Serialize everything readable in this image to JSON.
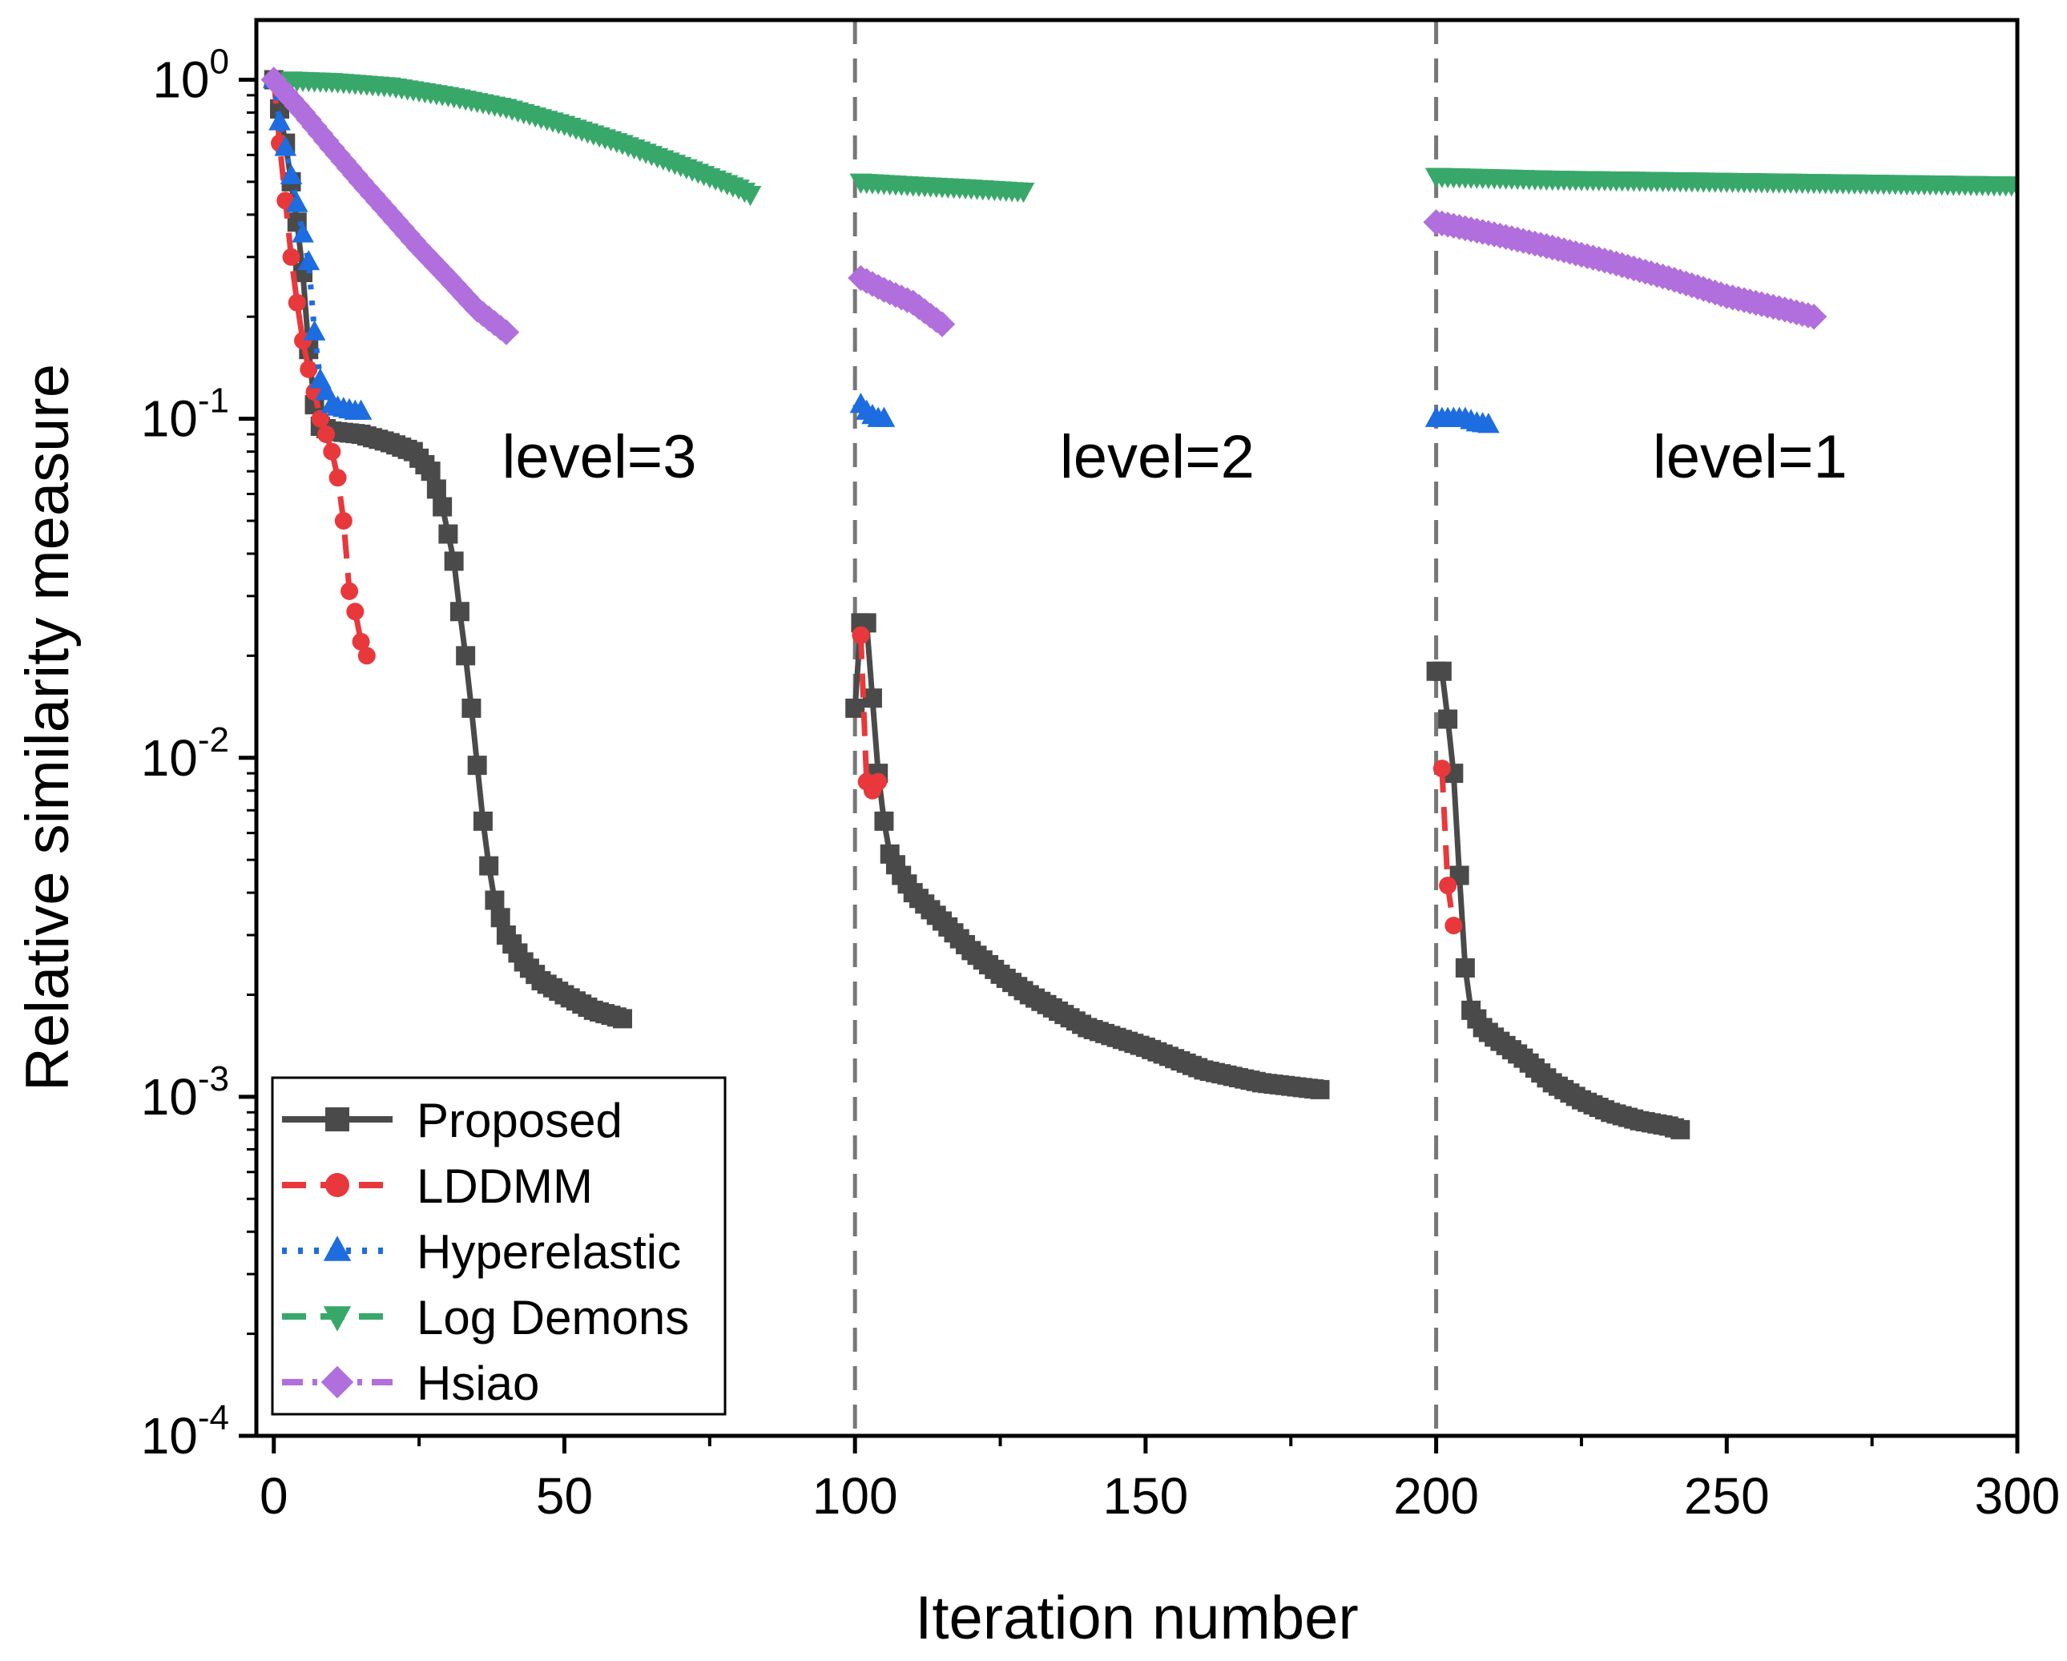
{
  "chart_data": {
    "type": "line",
    "xlabel": "Iteration number",
    "ylabel": "Relative similarity measure",
    "xlim": [
      -3,
      300
    ],
    "ylim": [
      0.0001,
      1.5
    ],
    "yscale": "log",
    "x_ticks": [
      0,
      50,
      100,
      150,
      200,
      250,
      300
    ],
    "x_tick_labels": [
      "0",
      "50",
      "100",
      "150",
      "200",
      "250",
      "300"
    ],
    "y_ticks": [
      {
        "value": 1,
        "base": "10",
        "exp": "0"
      },
      {
        "value": 0.1,
        "base": "10",
        "exp": "-1"
      },
      {
        "value": 0.01,
        "base": "10",
        "exp": "-2"
      },
      {
        "value": 0.001,
        "base": "10",
        "exp": "-3"
      },
      {
        "value": 0.0001,
        "base": "10",
        "exp": "-4"
      }
    ],
    "level_boundaries": [
      100,
      200
    ],
    "annotations": [
      {
        "text": "level=3",
        "x": 56,
        "y": 0.067
      },
      {
        "text": "level=2",
        "x": 152,
        "y": 0.067
      },
      {
        "text": "level=1",
        "x": 254,
        "y": 0.067
      }
    ],
    "legend": {
      "position": "bottom-left"
    },
    "series": [
      {
        "name": "Proposed",
        "color": "#4a4a4a",
        "marker": "square",
        "linestyle": "solid",
        "segments": [
          [
            [
              0,
              1.0
            ],
            [
              1,
              0.82
            ],
            [
              2,
              0.65
            ],
            [
              3,
              0.5
            ],
            [
              4,
              0.38
            ],
            [
              5,
              0.27
            ],
            [
              6,
              0.16
            ],
            [
              7,
              0.11
            ],
            [
              8,
              0.095
            ],
            [
              10,
              0.092
            ],
            [
              15,
              0.09
            ],
            [
              20,
              0.085
            ],
            [
              24,
              0.08
            ],
            [
              27,
              0.07
            ],
            [
              29,
              0.055
            ],
            [
              31,
              0.038
            ],
            [
              32,
              0.027
            ],
            [
              33,
              0.02
            ],
            [
              34,
              0.014
            ],
            [
              35,
              0.0095
            ],
            [
              36,
              0.0065
            ],
            [
              37,
              0.0048
            ],
            [
              38,
              0.0038
            ],
            [
              40,
              0.003
            ],
            [
              43,
              0.0025
            ],
            [
              46,
              0.0022
            ],
            [
              50,
              0.002
            ],
            [
              55,
              0.0018
            ],
            [
              60,
              0.0017
            ]
          ],
          [
            [
              100,
              0.014
            ],
            [
              101,
              0.025
            ],
            [
              102,
              0.025
            ],
            [
              103,
              0.015
            ],
            [
              104,
              0.009
            ],
            [
              105,
              0.0065
            ],
            [
              106,
              0.0052
            ],
            [
              108,
              0.0045
            ],
            [
              110,
              0.004
            ],
            [
              115,
              0.0033
            ],
            [
              120,
              0.0027
            ],
            [
              125,
              0.0023
            ],
            [
              130,
              0.002
            ],
            [
              140,
              0.0016
            ],
            [
              150,
              0.0014
            ],
            [
              160,
              0.0012
            ],
            [
              170,
              0.0011
            ],
            [
              180,
              0.00105
            ]
          ],
          [
            [
              200,
              0.018
            ],
            [
              201,
              0.018
            ],
            [
              202,
              0.013
            ],
            [
              203,
              0.009
            ],
            [
              204,
              0.0045
            ],
            [
              205,
              0.0024
            ],
            [
              206,
              0.0018
            ],
            [
              208,
              0.0016
            ],
            [
              210,
              0.0015
            ],
            [
              215,
              0.0013
            ],
            [
              220,
              0.0011
            ],
            [
              225,
              0.00098
            ],
            [
              230,
              0.0009
            ],
            [
              235,
              0.00085
            ],
            [
              240,
              0.00082
            ],
            [
              242,
              0.0008
            ]
          ]
        ]
      },
      {
        "name": "LDDMM",
        "color": "#e8383b",
        "marker": "circle",
        "linestyle": "dashed",
        "segments": [
          [
            [
              0,
              1.0
            ],
            [
              1,
              0.65
            ],
            [
              2,
              0.44
            ],
            [
              3,
              0.3
            ],
            [
              4,
              0.22
            ],
            [
              5,
              0.17
            ],
            [
              6,
              0.14
            ],
            [
              7,
              0.12
            ],
            [
              8,
              0.1
            ],
            [
              9,
              0.09
            ],
            [
              10,
              0.08
            ],
            [
              11,
              0.067
            ],
            [
              12,
              0.05
            ],
            [
              13,
              0.031
            ],
            [
              14,
              0.027
            ],
            [
              15,
              0.022
            ],
            [
              16,
              0.02
            ]
          ],
          [
            [
              101,
              0.023
            ],
            [
              102,
              0.0085
            ],
            [
              103,
              0.008
            ],
            [
              104,
              0.0085
            ]
          ],
          [
            [
              201,
              0.0093
            ],
            [
              202,
              0.0042
            ],
            [
              203,
              0.0032
            ]
          ]
        ]
      },
      {
        "name": "Hyperelastic",
        "color": "#1d6ce0",
        "marker": "triangle-up",
        "linestyle": "dotted",
        "segments": [
          [
            [
              0,
              1.0
            ],
            [
              1,
              0.75
            ],
            [
              2,
              0.63
            ],
            [
              3,
              0.52
            ],
            [
              4,
              0.43
            ],
            [
              5,
              0.35
            ],
            [
              6,
              0.29
            ],
            [
              7,
              0.18
            ],
            [
              8,
              0.13
            ],
            [
              9,
              0.12
            ],
            [
              10,
              0.11
            ],
            [
              11,
              0.108
            ],
            [
              12,
              0.107
            ],
            [
              13,
              0.106
            ],
            [
              14,
              0.105
            ],
            [
              15,
              0.105
            ]
          ],
          [
            [
              101,
              0.11
            ],
            [
              102,
              0.105
            ],
            [
              103,
              0.102
            ],
            [
              104,
              0.1
            ],
            [
              105,
              0.1
            ]
          ],
          [
            [
              200,
              0.1
            ],
            [
              201,
              0.1
            ],
            [
              203,
              0.1
            ],
            [
              205,
              0.1
            ],
            [
              207,
              0.097
            ],
            [
              209,
              0.096
            ]
          ]
        ]
      },
      {
        "name": "Log Demons",
        "color": "#38a86a",
        "marker": "triangle-down",
        "linestyle": "dashed",
        "segments": [
          [
            [
              3,
              1.0
            ],
            [
              10,
              0.99
            ],
            [
              20,
              0.96
            ],
            [
              30,
              0.9
            ],
            [
              40,
              0.83
            ],
            [
              50,
              0.74
            ],
            [
              60,
              0.65
            ],
            [
              70,
              0.56
            ],
            [
              80,
              0.48
            ],
            [
              82,
              0.46
            ]
          ],
          [
            [
              101,
              0.5
            ],
            [
              110,
              0.49
            ],
            [
              120,
              0.48
            ],
            [
              129,
              0.47
            ]
          ],
          [
            [
              200,
              0.52
            ],
            [
              220,
              0.51
            ],
            [
              240,
              0.505
            ],
            [
              260,
              0.5
            ],
            [
              280,
              0.495
            ],
            [
              300,
              0.49
            ]
          ]
        ]
      },
      {
        "name": "Hsiao",
        "color": "#b06fdc",
        "marker": "diamond",
        "linestyle": "dashdot",
        "segments": [
          [
            [
              0,
              1.0
            ],
            [
              5,
              0.8
            ],
            [
              10,
              0.63
            ],
            [
              15,
              0.5
            ],
            [
              20,
              0.4
            ],
            [
              25,
              0.32
            ],
            [
              30,
              0.26
            ],
            [
              35,
              0.21
            ],
            [
              40,
              0.18
            ]
          ],
          [
            [
              101,
              0.26
            ],
            [
              105,
              0.24
            ],
            [
              110,
              0.22
            ],
            [
              115,
              0.19
            ]
          ],
          [
            [
              200,
              0.38
            ],
            [
              210,
              0.35
            ],
            [
              220,
              0.32
            ],
            [
              230,
              0.29
            ],
            [
              240,
              0.26
            ],
            [
              250,
              0.23
            ],
            [
              260,
              0.21
            ],
            [
              265,
              0.2
            ]
          ]
        ]
      }
    ]
  }
}
